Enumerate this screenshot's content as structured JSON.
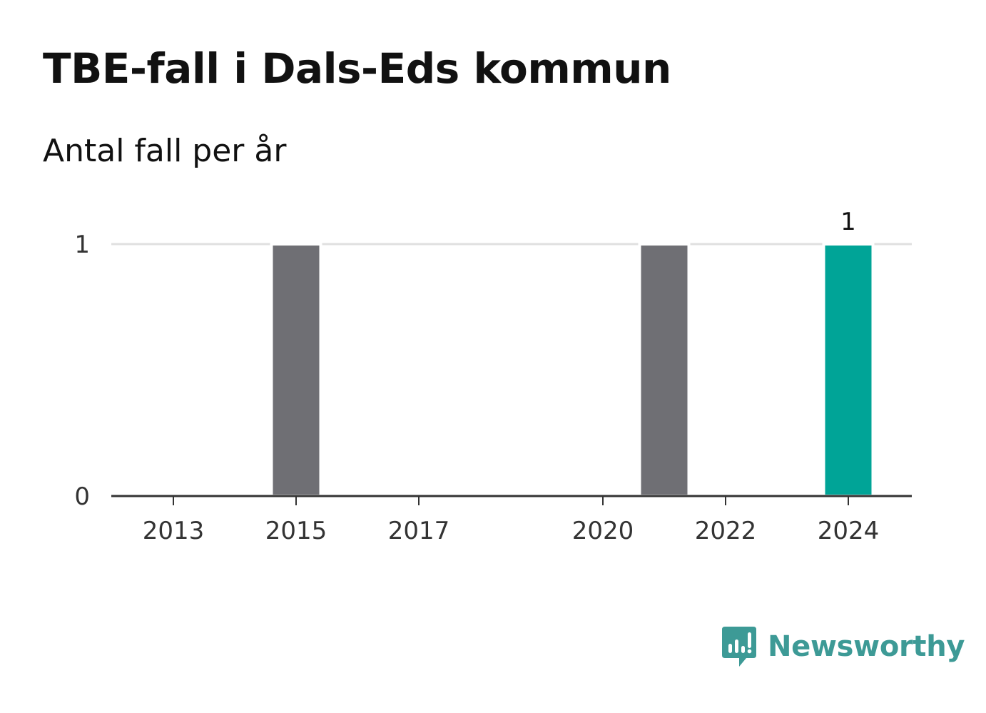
{
  "title": "TBE-fall i Dals-Eds kommun",
  "subtitle": "Antal fall per år",
  "brand": {
    "name": "Newsworthy",
    "icon": "newsworthy-logo-icon"
  },
  "colors": {
    "bar": "#6f6f74",
    "highlight": "#00a497",
    "grid": "#e0e0e0",
    "axis": "#333333",
    "brand": "#3d9a96"
  },
  "chart_data": {
    "type": "bar",
    "x": [
      2013,
      2014,
      2015,
      2016,
      2017,
      2018,
      2019,
      2020,
      2021,
      2022,
      2023,
      2024
    ],
    "values": [
      0,
      0,
      1,
      0,
      0,
      0,
      0,
      0,
      1,
      0,
      0,
      1
    ],
    "x_tick_labels": [
      "2013",
      "2015",
      "2017",
      "2020",
      "2022",
      "2024"
    ],
    "y_ticks": [
      0,
      1
    ],
    "ylim": [
      0,
      1
    ],
    "highlight": 2024,
    "data_labels": [
      {
        "x": 2024,
        "text": "1"
      }
    ],
    "grid": true,
    "legend": false
  }
}
